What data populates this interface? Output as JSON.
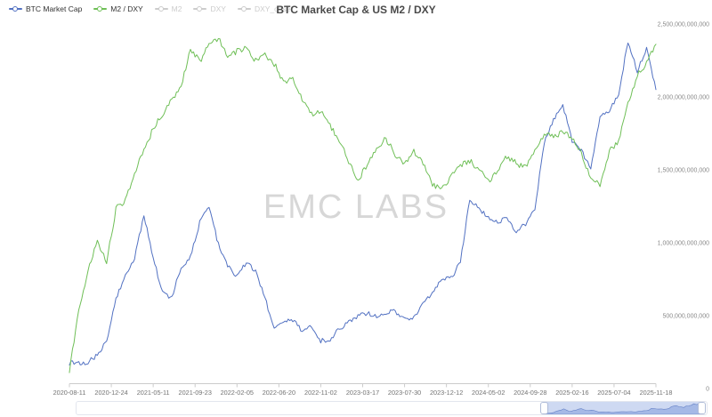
{
  "header": {
    "title": "BTC Market Cap & US M2 / DXY"
  },
  "watermark": "EMC LABS",
  "legend": {
    "items": [
      {
        "label": "BTC Market Cap",
        "color": "#5271c2",
        "active": true
      },
      {
        "label": "M2 / DXY",
        "color": "#6fbf57",
        "active": true
      },
      {
        "label": "M2",
        "color": "#cccccc",
        "active": false
      },
      {
        "label": "DXY",
        "color": "#cccccc",
        "active": false
      },
      {
        "label": "DXY_offset",
        "color": "#cccccc",
        "active": false
      }
    ]
  },
  "chart_data": {
    "type": "line",
    "title": "BTC Market Cap & US M2 / DXY",
    "units": "USD billions",
    "grid": false,
    "legend_position": "top-left",
    "ylim": [
      0,
      2500
    ],
    "y_axis": {
      "side": "right",
      "tick_values": [
        0,
        500,
        1000,
        1500,
        2000,
        2500
      ],
      "tick_labels": [
        "0",
        "500,000,000,000",
        "1,000,000,000,000",
        "1,500,000,000,000",
        "2,000,000,000,000",
        "2,500,000,000,000"
      ]
    },
    "x_tick_labels": [
      "2020-08-11",
      "2020-12-24",
      "2021-05-11",
      "2021-09-23",
      "2022-02-05",
      "2022-06-20",
      "2022-11-02",
      "2023-03-17",
      "2023-07-30",
      "2023-12-12",
      "2024-05-02",
      "2024-09-28",
      "2025-02-16",
      "2025-07-04",
      "2025-11-18"
    ],
    "x": [
      "2020-08",
      "2020-09",
      "2020-10",
      "2020-11",
      "2020-12",
      "2021-01",
      "2021-02",
      "2021-03",
      "2021-04",
      "2021-05",
      "2021-06",
      "2021-07",
      "2021-08",
      "2021-09",
      "2021-10",
      "2021-11",
      "2021-12",
      "2022-01",
      "2022-02",
      "2022-03",
      "2022-04",
      "2022-05",
      "2022-06",
      "2022-07",
      "2022-08",
      "2022-09",
      "2022-10",
      "2022-11",
      "2022-12",
      "2023-01",
      "2023-02",
      "2023-03",
      "2023-04",
      "2023-05",
      "2023-06",
      "2023-07",
      "2023-08",
      "2023-09",
      "2023-10",
      "2023-11",
      "2023-12",
      "2024-01",
      "2024-02",
      "2024-03",
      "2024-04",
      "2024-05",
      "2024-06",
      "2024-07",
      "2024-08",
      "2024-09",
      "2024-10",
      "2024-11",
      "2024-12",
      "2025-01",
      "2025-02",
      "2025-03",
      "2025-04",
      "2025-05",
      "2025-06",
      "2025-07",
      "2025-08",
      "2025-09",
      "2025-10",
      "2025-11"
    ],
    "series": [
      {
        "name": "BTC Market Cap",
        "color": "#5271c2",
        "values": [
          177,
          171,
          183,
          226,
          329,
          622,
          775,
          897,
          1190,
          897,
          653,
          622,
          836,
          897,
          1141,
          1244,
          988,
          836,
          775,
          866,
          805,
          622,
          409,
          458,
          470,
          397,
          421,
          329,
          335,
          409,
          451,
          500,
          519,
          488,
          519,
          531,
          470,
          482,
          592,
          653,
          744,
          756,
          866,
          1300,
          1232,
          1171,
          1141,
          1171,
          1080,
          1129,
          1232,
          1690,
          1842,
          1946,
          1690,
          1629,
          1507,
          1873,
          1903,
          2025,
          2380,
          2178,
          2330,
          2050
        ]
      },
      {
        "name": "M2 / DXY",
        "color": "#6fbf57",
        "values": [
          122,
          530,
          805,
          1019,
          866,
          1232,
          1293,
          1476,
          1641,
          1781,
          1885,
          1983,
          2068,
          2330,
          2239,
          2373,
          2403,
          2281,
          2312,
          2330,
          2251,
          2288,
          2227,
          2105,
          2117,
          1983,
          1885,
          1909,
          1800,
          1702,
          1549,
          1427,
          1537,
          1653,
          1714,
          1604,
          1543,
          1623,
          1543,
          1397,
          1366,
          1452,
          1531,
          1562,
          1501,
          1421,
          1482,
          1592,
          1543,
          1513,
          1623,
          1745,
          1726,
          1757,
          1726,
          1604,
          1452,
          1391,
          1629,
          1702,
          1964,
          2147,
          2227,
          2361
        ]
      }
    ]
  },
  "navigator": {
    "selection_start_pct": 74.2,
    "selection_end_pct": 99.2
  }
}
